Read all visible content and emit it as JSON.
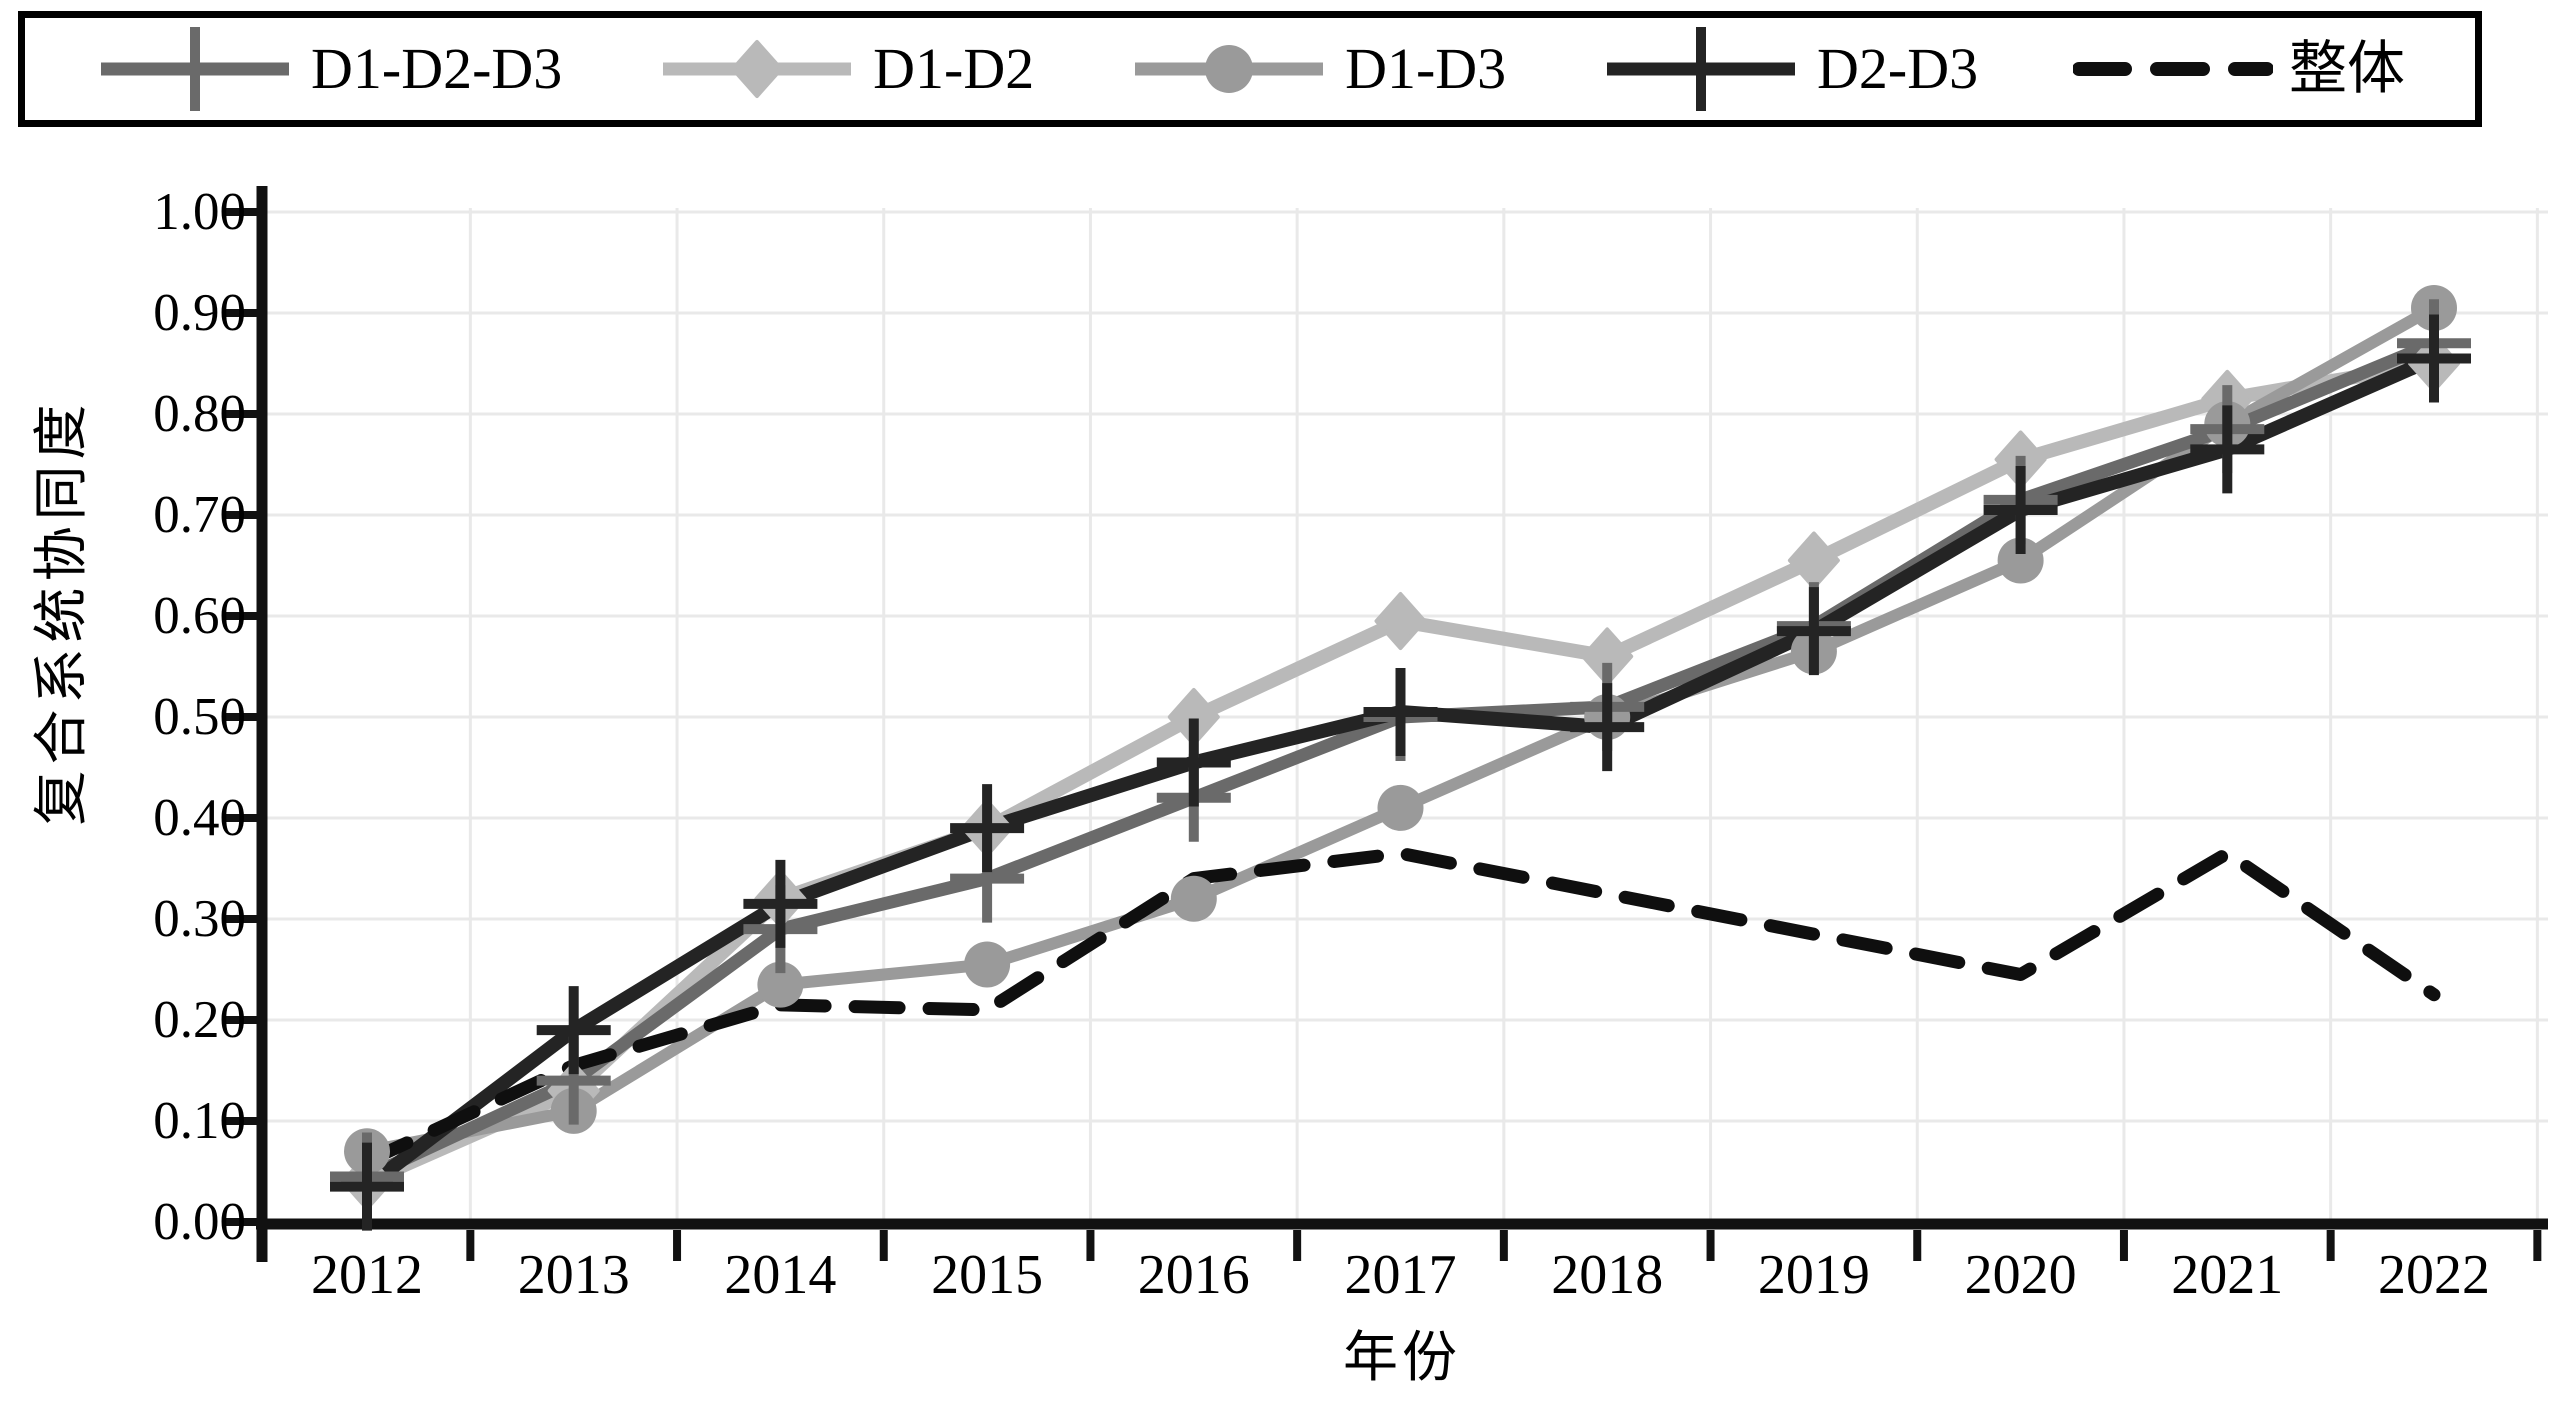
{
  "figure": {
    "background": "#ffffff",
    "text_color": "#000000",
    "grid_color": "#e9e9e9",
    "axis_color": "#111111"
  },
  "chart_data": {
    "type": "line",
    "title": "",
    "xlabel": "年份",
    "ylabel": "复合系统协同度",
    "x": [
      2012,
      2013,
      2014,
      2015,
      2016,
      2017,
      2018,
      2019,
      2020,
      2021,
      2022
    ],
    "x_tick_labels": [
      "2012",
      "2013",
      "2014",
      "2015",
      "2016",
      "2017",
      "2018",
      "2019",
      "2020",
      "2021",
      "2022"
    ],
    "y_tick_labels": [
      "0.00",
      "0.10",
      "0.20",
      "0.30",
      "0.40",
      "0.50",
      "0.60",
      "0.70",
      "0.80",
      "0.90",
      "1.00"
    ],
    "ylim": [
      0.0,
      1.0
    ],
    "y_tick_step": 0.1,
    "grid": true,
    "legend_position": "top",
    "series": [
      {
        "key": "d1-d2-d3",
        "name": "D1-D2-D3",
        "marker": "plus",
        "line": "solid",
        "color": "#6a6a6a",
        "width": 13,
        "values": [
          0.045,
          0.14,
          0.29,
          0.34,
          0.42,
          0.5,
          0.51,
          0.59,
          0.715,
          0.785,
          0.87
        ]
      },
      {
        "key": "d1-d2",
        "name": "D1-D2",
        "marker": "diamond",
        "line": "solid",
        "color": "#b9b9b9",
        "width": 14,
        "values": [
          0.04,
          0.13,
          0.32,
          0.39,
          0.5,
          0.595,
          0.56,
          0.655,
          0.755,
          0.815,
          0.85
        ]
      },
      {
        "key": "d1-d3",
        "name": "D1-D3",
        "marker": "circle",
        "line": "solid",
        "color": "#9a9a9a",
        "width": 12,
        "values": [
          0.07,
          0.11,
          0.235,
          0.255,
          0.32,
          0.41,
          0.5,
          0.565,
          0.655,
          0.79,
          0.905
        ]
      },
      {
        "key": "d2-d3",
        "name": "D2-D3",
        "marker": "plus",
        "line": "solid",
        "color": "#242424",
        "width": 14,
        "values": [
          0.035,
          0.19,
          0.315,
          0.39,
          0.455,
          0.505,
          0.49,
          0.585,
          0.705,
          0.765,
          0.855
        ]
      },
      {
        "key": "overall",
        "name": "整体",
        "marker": "none",
        "line": "dashed",
        "color": "#0f0f0f",
        "width": 13,
        "values": [
          0.06,
          0.155,
          0.215,
          0.21,
          0.34,
          0.365,
          0.325,
          0.285,
          0.245,
          0.365,
          0.225
        ]
      }
    ]
  }
}
